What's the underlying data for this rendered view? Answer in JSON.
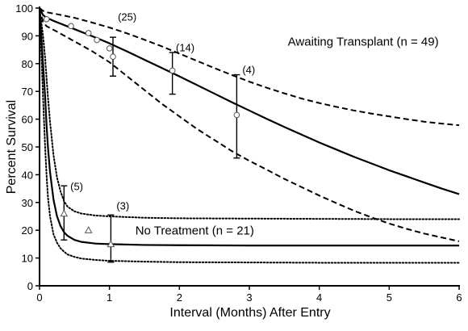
{
  "chart_data": {
    "type": "line",
    "xlabel": "Interval (Months) After Entry",
    "ylabel": "Percent Survival",
    "xlim": [
      0,
      6
    ],
    "ylim": [
      0,
      100
    ],
    "x_ticks": [
      0,
      1,
      2,
      3,
      4,
      5,
      6
    ],
    "y_ticks": [
      0,
      10,
      20,
      30,
      40,
      50,
      60,
      70,
      80,
      90,
      100
    ],
    "grid": false,
    "legend": "none",
    "annotations": [
      {
        "text": "Awaiting Transplant (n = 49)",
        "x": 3.55,
        "y": 86.5
      },
      {
        "text": "No Treatment (n = 21)",
        "x": 1.37,
        "y": 18.5
      }
    ],
    "count_labels": [
      {
        "text": "(25)",
        "x": 1.12,
        "y": 95.5
      },
      {
        "text": "(14)",
        "x": 1.95,
        "y": 84.5
      },
      {
        "text": "(4)",
        "x": 2.9,
        "y": 76.5
      },
      {
        "text": "(5)",
        "x": 0.44,
        "y": 34.5
      },
      {
        "text": "(3)",
        "x": 1.1,
        "y": 27.5
      }
    ],
    "series": [
      {
        "group": "Awaiting Transplant",
        "kind": "fit",
        "style": "solid",
        "x": [
          0,
          0.05,
          0.1,
          0.2,
          0.4,
          0.6,
          0.8,
          1.0,
          1.25,
          1.5,
          1.75,
          2.0,
          2.25,
          2.5,
          2.75,
          3.0,
          3.25,
          3.5,
          3.75,
          4.0,
          4.25,
          4.5,
          4.75,
          5.0,
          5.25,
          5.5,
          5.75,
          6.0
        ],
        "y": [
          100,
          97.5,
          96.5,
          95.4,
          93.4,
          91.4,
          89.4,
          87.3,
          84.4,
          81.4,
          78.4,
          75.4,
          72.3,
          69.2,
          66.1,
          63.1,
          60.1,
          57.2,
          54.4,
          51.6,
          49.0,
          46.4,
          44.0,
          41.6,
          39.4,
          37.2,
          35.0,
          33.0
        ]
      },
      {
        "group": "Awaiting Transplant",
        "kind": "upper-ci",
        "style": "dashed",
        "x": [
          0,
          0.05,
          0.1,
          0.25,
          0.5,
          0.75,
          1.0,
          1.25,
          1.5,
          1.75,
          2.0,
          2.25,
          2.5,
          2.75,
          3.0,
          3.25,
          3.5,
          3.75,
          4.0,
          4.25,
          4.5,
          4.75,
          5.0,
          5.25,
          5.5,
          5.75,
          6.0
        ],
        "y": [
          100,
          99.0,
          98.5,
          97.8,
          96.5,
          94.8,
          93.0,
          90.9,
          88.6,
          86.2,
          83.6,
          81.0,
          78.4,
          75.9,
          73.5,
          71.3,
          69.3,
          67.4,
          65.8,
          64.4,
          63.1,
          62.0,
          61.0,
          60.0,
          59.1,
          58.4,
          57.8
        ]
      },
      {
        "group": "Awaiting Transplant",
        "kind": "lower-ci",
        "style": "dashed",
        "x": [
          0,
          0.05,
          0.1,
          0.25,
          0.5,
          0.75,
          1.0,
          1.25,
          1.5,
          1.75,
          2.0,
          2.25,
          2.5,
          2.75,
          3.0,
          3.25,
          3.5,
          3.75,
          4.0,
          4.25,
          4.5,
          4.75,
          5.0,
          5.25,
          5.5,
          5.75,
          6.0
        ],
        "y": [
          100,
          95.0,
          93.5,
          91.5,
          88.0,
          84.5,
          80.5,
          75.5,
          70.5,
          65.5,
          61.0,
          56.5,
          52.5,
          48.5,
          45.0,
          41.8,
          38.5,
          35.5,
          32.5,
          29.7,
          27.0,
          24.6,
          22.4,
          20.5,
          18.8,
          17.4,
          16.0
        ]
      },
      {
        "group": "No Treatment",
        "kind": "fit",
        "style": "solid",
        "x": [
          0,
          0.02,
          0.05,
          0.08,
          0.1,
          0.12,
          0.15,
          0.2,
          0.25,
          0.3,
          0.35,
          0.4,
          0.5,
          0.6,
          0.8,
          1.0,
          1.5,
          2.0,
          3.0,
          4.0,
          5.0,
          6.0
        ],
        "y": [
          100,
          92,
          80,
          68,
          58,
          50,
          41,
          31,
          25,
          21.5,
          19.3,
          18.0,
          16.5,
          15.8,
          15.2,
          15.0,
          14.7,
          14.6,
          14.5,
          14.5,
          14.5,
          14.5
        ]
      },
      {
        "group": "No Treatment",
        "kind": "upper-ci",
        "style": "dotted",
        "x": [
          0,
          0.02,
          0.05,
          0.08,
          0.1,
          0.12,
          0.15,
          0.2,
          0.25,
          0.3,
          0.35,
          0.4,
          0.5,
          0.6,
          0.8,
          1.0,
          1.5,
          2.0,
          3.0,
          4.0,
          5.0,
          6.0
        ],
        "y": [
          100,
          96,
          90,
          82,
          75,
          68,
          59,
          47,
          39,
          34,
          30.5,
          28.5,
          26.8,
          26.0,
          25.3,
          25.0,
          24.5,
          24.3,
          24.2,
          24.1,
          24.0,
          24.0
        ]
      },
      {
        "group": "No Treatment",
        "kind": "lower-ci",
        "style": "dotted",
        "x": [
          0,
          0.02,
          0.05,
          0.08,
          0.1,
          0.12,
          0.15,
          0.2,
          0.25,
          0.3,
          0.35,
          0.4,
          0.5,
          0.6,
          0.8,
          1.0,
          1.5,
          2.0,
          3.0,
          4.0,
          5.0,
          6.0
        ],
        "y": [
          100,
          88,
          68,
          50,
          40,
          32,
          25,
          18.5,
          15.5,
          13.5,
          12.3,
          11.3,
          10.4,
          9.8,
          9.3,
          9.0,
          8.7,
          8.5,
          8.4,
          8.3,
          8.3,
          8.3
        ]
      }
    ],
    "observed_points": [
      {
        "group": "Awaiting Transplant",
        "marker": "circle",
        "x": [
          0.1,
          0.45,
          0.7,
          0.82,
          1.0,
          1.05,
          1.9,
          2.82
        ],
        "y": [
          96,
          93.5,
          91,
          88.5,
          85.5,
          82.5,
          77.5,
          61.5
        ]
      },
      {
        "group": "No Treatment",
        "marker": "triangle",
        "x": [
          0.35,
          0.7,
          1.02
        ],
        "y": [
          26,
          20,
          15
        ]
      }
    ],
    "error_bars": [
      {
        "group": "Awaiting Transplant",
        "x": 1.05,
        "low": 75.5,
        "high": 89.5
      },
      {
        "group": "Awaiting Transplant",
        "x": 1.9,
        "low": 69,
        "high": 84
      },
      {
        "group": "Awaiting Transplant",
        "x": 2.82,
        "low": 46,
        "high": 76
      },
      {
        "group": "No Treatment",
        "x": 0.35,
        "low": 16.5,
        "high": 36
      },
      {
        "group": "No Treatment",
        "x": 1.02,
        "low": 8.5,
        "high": 25.5
      }
    ]
  }
}
